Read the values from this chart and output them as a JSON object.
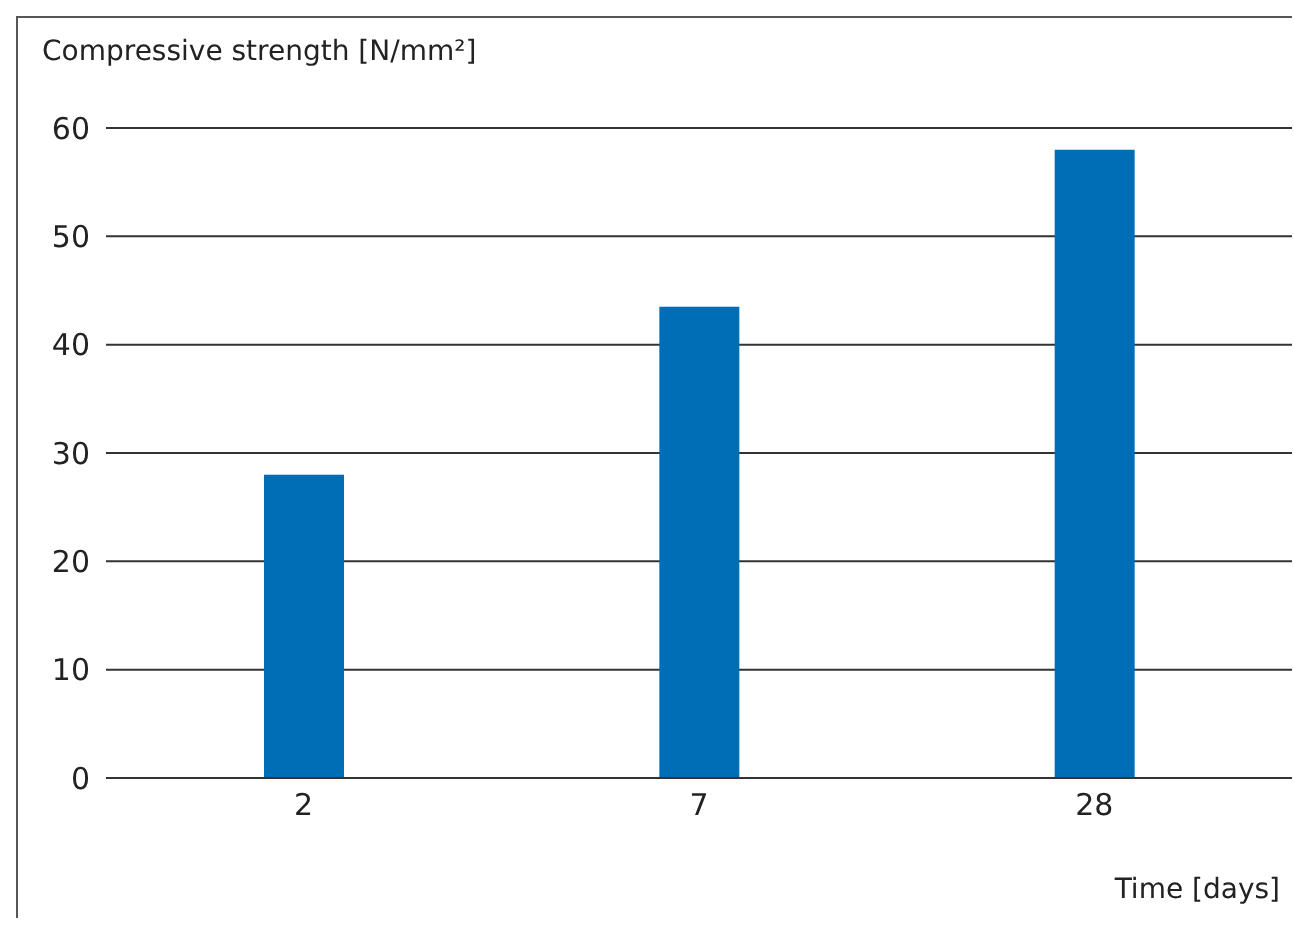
{
  "chart_data": {
    "type": "bar",
    "ylabel": "Compressive strength [N/mm²]",
    "xlabel": "Time [days]",
    "categories": [
      "2",
      "7",
      "28"
    ],
    "values": [
      28,
      43.5,
      58
    ],
    "color": "#006eb7",
    "ylim": [
      0,
      60
    ],
    "yticks": [
      0,
      10,
      20,
      30,
      40,
      50,
      60
    ],
    "grid": "y"
  }
}
